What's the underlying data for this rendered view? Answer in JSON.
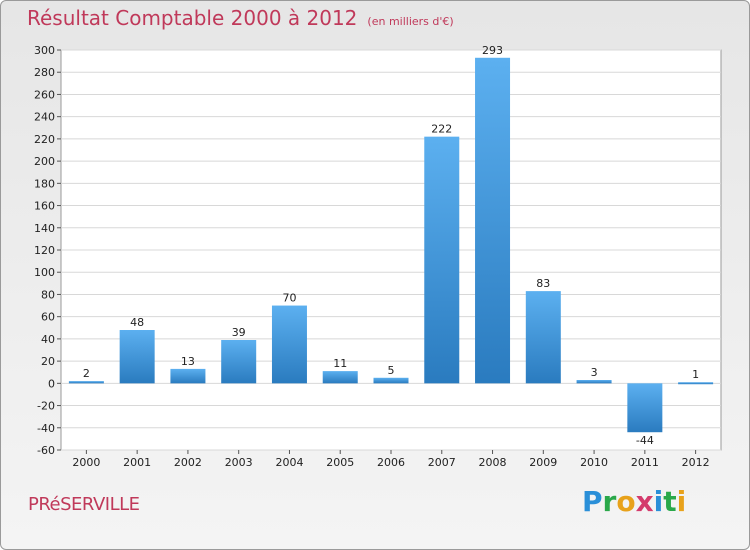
{
  "title": "Résultat Comptable 2000 à 2012",
  "subtitle": "(en milliers d'€)",
  "town": "PRéSERVILLE",
  "logo": {
    "letters": [
      "P",
      "r",
      "o",
      "x",
      "i",
      "t",
      "i"
    ],
    "colors": [
      "#2a8fd8",
      "#2aa84a",
      "#e8a21b",
      "#d43b6c",
      "#2a8fd8",
      "#2aa84a",
      "#e8a21b"
    ]
  },
  "colors": {
    "bar_light": "#5aaef0",
    "bar_dark": "#2a7cc0",
    "title": "#c0395a"
  },
  "chart_data": {
    "type": "bar",
    "title": "Résultat Comptable 2000 à 2012",
    "xlabel": "",
    "ylabel": "",
    "categories": [
      "2000",
      "2001",
      "2002",
      "2003",
      "2004",
      "2005",
      "2006",
      "2007",
      "2008",
      "2009",
      "2010",
      "2011",
      "2012"
    ],
    "values": [
      2,
      48,
      13,
      39,
      70,
      11,
      5,
      222,
      293,
      83,
      3,
      -44,
      1
    ],
    "ylim": [
      -60,
      300
    ],
    "yticks": [
      -60,
      -40,
      -20,
      0,
      20,
      40,
      60,
      80,
      100,
      120,
      140,
      160,
      180,
      200,
      220,
      240,
      260,
      280,
      300
    ],
    "grid": true
  }
}
